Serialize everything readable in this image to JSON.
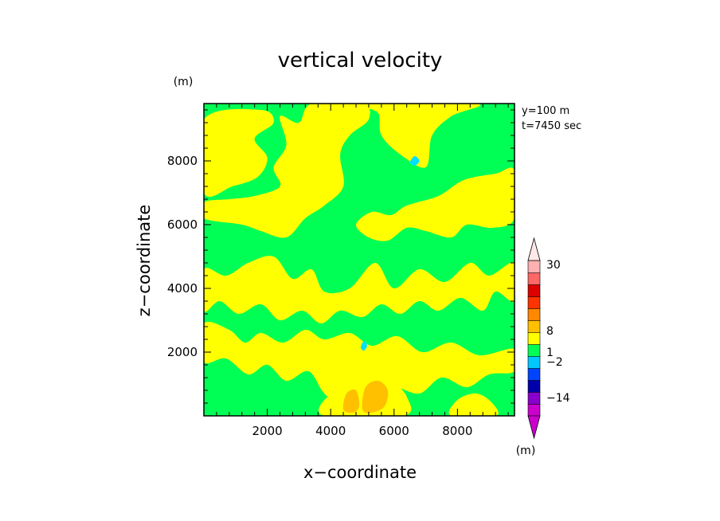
{
  "chart_data": {
    "type": "heatmap",
    "title": "vertical velocity",
    "xlabel": "x−coordinate",
    "ylabel": "z−coordinate",
    "y_unit": "(m)",
    "colorbar_unit": "(m)",
    "info_lines": [
      "y=100 m",
      "t=7450 sec"
    ],
    "xlim": [
      0,
      9800
    ],
    "ylim": [
      0,
      9800
    ],
    "x_ticks": [
      2000,
      4000,
      6000,
      8000
    ],
    "y_ticks": [
      2000,
      4000,
      6000,
      8000
    ],
    "x_tick_labels": [
      "2000",
      "4000",
      "6000",
      "8000"
    ],
    "y_tick_labels": [
      "2000",
      "4000",
      "6000",
      "8000"
    ],
    "colorbar_labels": [
      "30",
      "8",
      "1",
      "−2",
      "−14"
    ],
    "colors": {
      "background_field": "#00ff55",
      "updraft_field": "#ffff00",
      "strong_updraft": "#ffc000",
      "downdraft_spot": "#00e0ff"
    },
    "colorbar_colors": [
      "#cc00cc",
      "#8800cc",
      "#0000aa",
      "#0044ff",
      "#00c8ff",
      "#00ff55",
      "#ffff00",
      "#ffc000",
      "#ff8800",
      "#ff3300",
      "#dd0000",
      "#ff6666",
      "#ffb0b0"
    ],
    "updraft_regions": [
      [
        [
          0,
          9300
        ],
        [
          1800,
          9600
        ],
        [
          2200,
          9200
        ],
        [
          1600,
          8700
        ],
        [
          2000,
          8100
        ],
        [
          1700,
          7500
        ],
        [
          900,
          7200
        ],
        [
          0,
          7000
        ]
      ],
      [
        [
          0,
          6200
        ],
        [
          1200,
          6000
        ],
        [
          1800,
          5800
        ],
        [
          2600,
          5600
        ],
        [
          3200,
          6200
        ],
        [
          3800,
          6600
        ],
        [
          4400,
          7200
        ],
        [
          4300,
          8200
        ],
        [
          4600,
          8800
        ],
        [
          5200,
          9300
        ],
        [
          5000,
          9800
        ],
        [
          3400,
          9800
        ],
        [
          3000,
          9200
        ],
        [
          2400,
          9400
        ],
        [
          2600,
          8500
        ],
        [
          2200,
          7800
        ],
        [
          2400,
          7200
        ],
        [
          1600,
          6900
        ],
        [
          800,
          6800
        ],
        [
          0,
          6700
        ]
      ],
      [
        [
          5000,
          9800
        ],
        [
          5500,
          9500
        ],
        [
          5600,
          8800
        ],
        [
          6200,
          8200
        ],
        [
          7000,
          7800
        ],
        [
          7200,
          8800
        ],
        [
          7800,
          9400
        ],
        [
          8600,
          9800
        ]
      ],
      [
        [
          6400,
          6600
        ],
        [
          7400,
          6900
        ],
        [
          8200,
          7400
        ],
        [
          9200,
          7600
        ],
        [
          9800,
          7700
        ],
        [
          9800,
          6200
        ],
        [
          9100,
          5900
        ],
        [
          8300,
          6000
        ],
        [
          7800,
          5600
        ],
        [
          7000,
          5800
        ],
        [
          6400,
          5900
        ],
        [
          5800,
          5500
        ],
        [
          5200,
          5600
        ],
        [
          4800,
          6000
        ],
        [
          5300,
          6400
        ],
        [
          5900,
          6300
        ]
      ],
      [
        [
          0,
          4600
        ],
        [
          700,
          4400
        ],
        [
          1400,
          4800
        ],
        [
          2200,
          5000
        ],
        [
          2800,
          4300
        ],
        [
          3400,
          4600
        ],
        [
          3800,
          3900
        ],
        [
          4600,
          4000
        ],
        [
          5400,
          4800
        ],
        [
          6000,
          4000
        ],
        [
          6800,
          4600
        ],
        [
          7600,
          4200
        ],
        [
          8400,
          4800
        ],
        [
          9000,
          4400
        ],
        [
          9800,
          4800
        ],
        [
          9800,
          3600
        ],
        [
          9200,
          3900
        ],
        [
          8800,
          3300
        ],
        [
          8100,
          3700
        ],
        [
          7400,
          3300
        ],
        [
          6800,
          3600
        ],
        [
          6200,
          3200
        ],
        [
          5600,
          3500
        ],
        [
          5000,
          3100
        ],
        [
          4300,
          3300
        ],
        [
          3700,
          2900
        ],
        [
          3100,
          3300
        ],
        [
          2400,
          3000
        ],
        [
          1800,
          3500
        ],
        [
          1100,
          3200
        ],
        [
          500,
          3600
        ],
        [
          0,
          3300
        ]
      ],
      [
        [
          0,
          2900
        ],
        [
          800,
          2700
        ],
        [
          1300,
          2300
        ],
        [
          1800,
          2600
        ],
        [
          2500,
          2300
        ],
        [
          3200,
          2700
        ],
        [
          3800,
          2400
        ],
        [
          4600,
          2600
        ],
        [
          5300,
          2200
        ],
        [
          6100,
          2500
        ],
        [
          6900,
          2000
        ],
        [
          7800,
          2300
        ],
        [
          8700,
          1900
        ],
        [
          9800,
          2100
        ],
        [
          9800,
          1400
        ],
        [
          9000,
          1300
        ],
        [
          8300,
          900
        ],
        [
          7500,
          1200
        ],
        [
          6800,
          700
        ],
        [
          6000,
          900
        ],
        [
          5600,
          500
        ],
        [
          4900,
          600
        ],
        [
          4400,
          300
        ],
        [
          3800,
          700
        ],
        [
          3300,
          1400
        ],
        [
          2600,
          1100
        ],
        [
          2000,
          1600
        ],
        [
          1400,
          1300
        ],
        [
          700,
          1800
        ],
        [
          0,
          1700
        ]
      ],
      [
        [
          3800,
          0
        ],
        [
          3900,
          600
        ],
        [
          4600,
          800
        ],
        [
          5200,
          1300
        ],
        [
          5900,
          1100
        ],
        [
          6400,
          600
        ],
        [
          6300,
          0
        ]
      ],
      [
        [
          7800,
          0
        ],
        [
          8000,
          500
        ],
        [
          8600,
          700
        ],
        [
          9100,
          400
        ],
        [
          9200,
          0
        ]
      ]
    ],
    "strong_updraft_regions": [
      [
        [
          4400,
          200
        ],
        [
          4500,
          700
        ],
        [
          4800,
          800
        ],
        [
          4900,
          300
        ],
        [
          4700,
          100
        ]
      ],
      [
        [
          5000,
          200
        ],
        [
          5100,
          900
        ],
        [
          5500,
          1100
        ],
        [
          5800,
          800
        ],
        [
          5700,
          300
        ],
        [
          5300,
          100
        ]
      ]
    ],
    "downdraft_spots": [
      [
        [
          6500,
          7950
        ],
        [
          6650,
          8150
        ],
        [
          6800,
          8000
        ],
        [
          6650,
          7850
        ]
      ],
      [
        [
          4950,
          2150
        ],
        [
          5050,
          2350
        ],
        [
          5150,
          2200
        ],
        [
          5050,
          2050
        ]
      ]
    ]
  }
}
